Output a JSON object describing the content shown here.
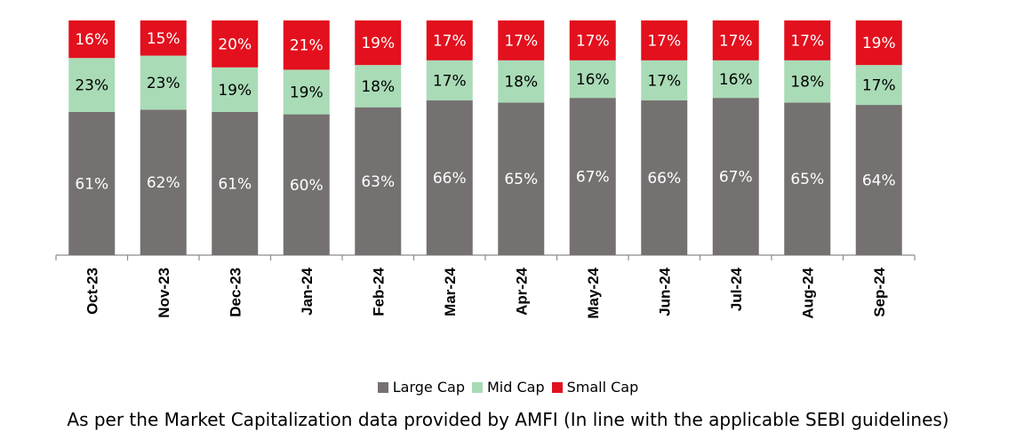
{
  "chart_data": {
    "type": "bar",
    "stacked": true,
    "categories": [
      "Oct-23",
      "Nov-23",
      "Dec-23",
      "Jan-24",
      "Feb-24",
      "Mar-24",
      "Apr-24",
      "May-24",
      "Jun-24",
      "Jul-24",
      "Aug-24",
      "Sep-24"
    ],
    "series": [
      {
        "name": "Large Cap",
        "color": "#767171",
        "label_color": "#ffffff",
        "values": [
          61,
          62,
          61,
          60,
          63,
          66,
          65,
          67,
          66,
          67,
          65,
          64
        ]
      },
      {
        "name": "Mid Cap",
        "color": "#a9dbb6",
        "label_color": "#000000",
        "values": [
          23,
          23,
          19,
          19,
          18,
          17,
          18,
          16,
          17,
          16,
          18,
          17
        ]
      },
      {
        "name": "Small Cap",
        "color": "#e3101e",
        "label_color": "#ffffff",
        "values": [
          16,
          15,
          20,
          21,
          19,
          17,
          17,
          17,
          17,
          17,
          17,
          19
        ]
      }
    ],
    "value_suffix": "%",
    "ylim": [
      0,
      100
    ],
    "grid": false,
    "legend_position": "bottom"
  },
  "footnote": "As per the Market Capitalization data provided by AMFI (In line with the applicable SEBI guidelines)"
}
